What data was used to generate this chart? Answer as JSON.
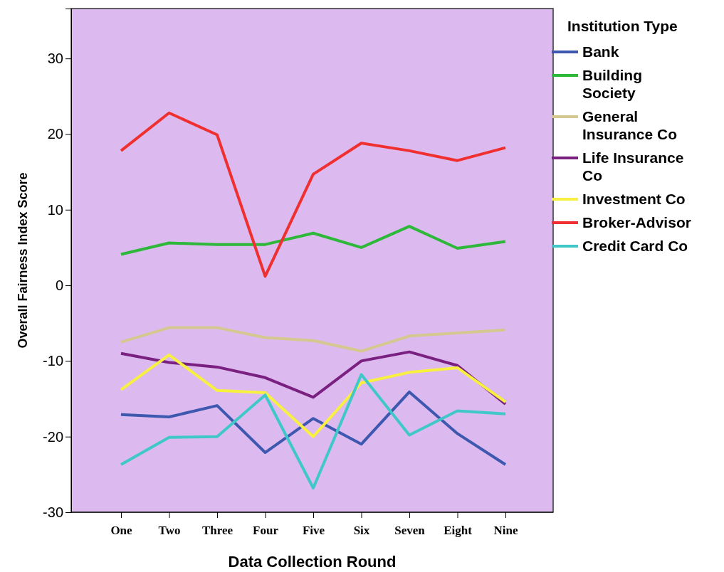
{
  "chart_data": {
    "type": "line",
    "xlabel": "Data Collection Round",
    "ylabel": "Overall Fairness Index Score",
    "legend_title": "Institution Type",
    "legend": "right",
    "grid": false,
    "marker": "none",
    "line_style": "solid",
    "categories": [
      "One",
      "Two",
      "Three",
      "Four",
      "Five",
      "Six",
      "Seven",
      "Eight",
      "Nine"
    ],
    "ylim": [
      -30,
      36.6
    ],
    "yticks": [
      -30,
      -20,
      -10,
      0,
      10,
      20,
      30
    ],
    "series": [
      {
        "name": "Bank",
        "color": "#3e58b0",
        "values": [
          -17.1,
          -17.4,
          -15.9,
          -22.1,
          -17.6,
          -21.0,
          -14.1,
          -19.6,
          -23.7
        ]
      },
      {
        "name": "Building Society",
        "color": "#2eb83a",
        "values": [
          4.1,
          5.6,
          5.4,
          5.4,
          6.9,
          5.0,
          7.8,
          4.9,
          5.8
        ]
      },
      {
        "name": "General Insurance Co",
        "color": "#d4c890",
        "values": [
          -7.5,
          -5.6,
          -5.6,
          -6.9,
          -7.3,
          -8.7,
          -6.7,
          -6.3,
          -5.9
        ]
      },
      {
        "name": "Life Insurance Co",
        "color": "#7a2080",
        "values": [
          -9.0,
          -10.2,
          -10.8,
          -12.2,
          -14.8,
          -10.0,
          -8.8,
          -10.6,
          -15.7
        ]
      },
      {
        "name": "Investment Co",
        "color": "#f8f040",
        "values": [
          -13.8,
          -9.2,
          -13.9,
          -14.2,
          -20.0,
          -12.9,
          -11.5,
          -10.9,
          -15.4
        ]
      },
      {
        "name": "Broker-Advisor",
        "color": "#f03030",
        "values": [
          17.8,
          22.8,
          19.9,
          1.2,
          14.7,
          18.8,
          17.8,
          16.5,
          18.2
        ]
      },
      {
        "name": "Credit Card Co",
        "color": "#40c8c8",
        "values": [
          -23.7,
          -20.1,
          -20.0,
          -14.5,
          -26.8,
          -11.8,
          -19.8,
          -16.6,
          -17.0
        ]
      }
    ]
  }
}
